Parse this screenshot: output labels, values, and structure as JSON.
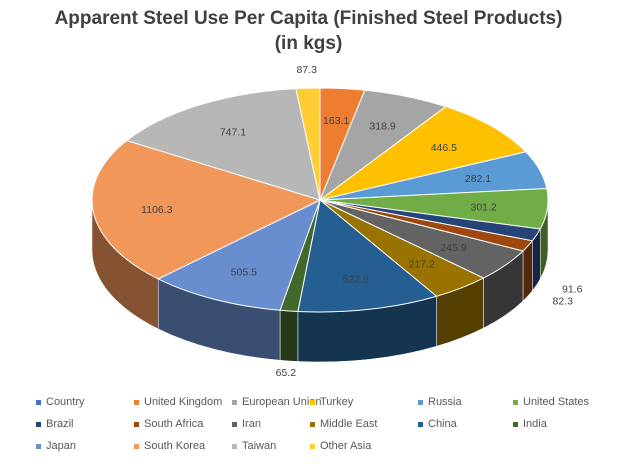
{
  "chart_data": {
    "type": "pie",
    "style": "3d",
    "title": "Apparent Steel Use Per Capita (Finished Steel Products)",
    "subtitle": "(in kgs)",
    "legend_position": "bottom",
    "categories": [
      "Country",
      "United Kingdom",
      "European Union",
      "Turkey",
      "Russia",
      "United States",
      "Brazil",
      "South Africa",
      "Iran",
      "Middle East",
      "China",
      "India",
      "Japan",
      "South Korea",
      "Taiwan",
      "Other Asia"
    ],
    "values": [
      0,
      163.1,
      318.9,
      446.5,
      282.1,
      301.2,
      91.6,
      82.3,
      245.9,
      217.2,
      522.8,
      65.2,
      505.5,
      1106.3,
      747.1,
      87.3
    ],
    "value_labels": [
      "",
      "163.1",
      "318.9",
      "446.5",
      "282.1",
      "301.2",
      "91.6",
      "82.3",
      "245.9",
      "217.2",
      "522.8",
      "65.2",
      "505.5",
      "1106.3",
      "747.1",
      "87.3"
    ],
    "colors": [
      "#4472C4",
      "#ED7D31",
      "#A5A5A5",
      "#FFC000",
      "#5B9BD5",
      "#70AD47",
      "#264478",
      "#9E480E",
      "#636363",
      "#997300",
      "#255E91",
      "#43682B",
      "#698ED0",
      "#F1975A",
      "#B7B7B7",
      "#FFCD33"
    ]
  }
}
